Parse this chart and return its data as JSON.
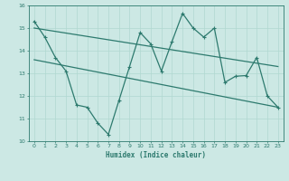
{
  "title": "",
  "xlabel": "Humidex (Indice chaleur)",
  "ylabel": "",
  "bg_color": "#cce8e4",
  "grid_color": "#b0d8d0",
  "line_color": "#2d7a6e",
  "x_ticks": [
    0,
    1,
    2,
    3,
    4,
    5,
    6,
    7,
    8,
    9,
    10,
    11,
    12,
    13,
    14,
    15,
    16,
    17,
    18,
    19,
    20,
    21,
    22,
    23
  ],
  "ylim": [
    10,
    16
  ],
  "xlim": [
    -0.5,
    23.5
  ],
  "yticks": [
    10,
    11,
    12,
    13,
    14,
    15,
    16
  ],
  "series1_x": [
    0,
    1,
    2,
    3,
    4,
    5,
    6,
    7,
    8,
    9,
    10,
    11,
    12,
    13,
    14,
    15,
    16,
    17,
    18,
    19,
    20,
    21,
    22,
    23
  ],
  "series1_y": [
    15.3,
    14.6,
    13.7,
    13.1,
    11.6,
    11.5,
    10.8,
    10.3,
    11.8,
    13.3,
    14.8,
    14.3,
    13.1,
    14.4,
    15.65,
    15.0,
    14.6,
    15.0,
    12.6,
    12.87,
    12.9,
    13.7,
    12.0,
    11.5
  ],
  "trend1_x": [
    0,
    23
  ],
  "trend1_y": [
    15.0,
    13.3
  ],
  "trend2_x": [
    0,
    23
  ],
  "trend2_y": [
    13.6,
    11.5
  ]
}
